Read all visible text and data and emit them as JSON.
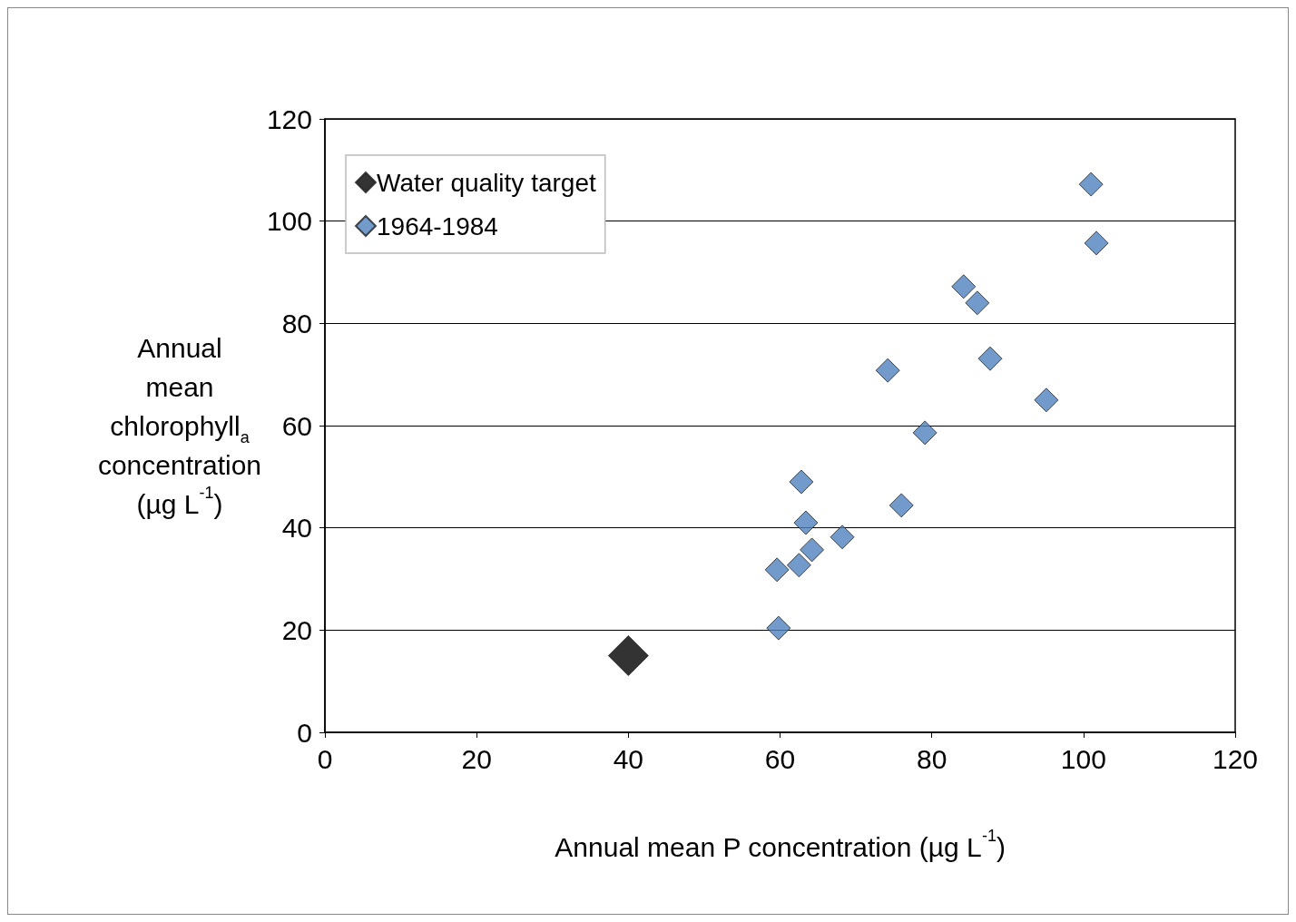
{
  "chart_data": {
    "type": "scatter",
    "xlabel": "Annual mean P concentration (µg L$^{-1}$)",
    "ylabel": "Annual mean chlorophyll$_{a}$ concentration (µg L$^{-1}$)",
    "xlim": [
      0,
      120
    ],
    "xticks": [
      0,
      20,
      40,
      60,
      80,
      100,
      120
    ],
    "ylim": [
      0,
      120
    ],
    "yticks": [
      0,
      20,
      40,
      60,
      80,
      100,
      120
    ],
    "grid": "y",
    "legend": "top left",
    "marker": "diamond",
    "series": [
      {
        "name": "Water quality target",
        "color": "#000000",
        "x": [
          40
        ],
        "values": [
          15
        ]
      },
      {
        "name": "1964-1984",
        "color": "#4f81bd",
        "x": [
          59.6,
          59.8,
          62.5,
          62.8,
          63.4,
          64.2,
          68.2,
          74.2,
          76.0,
          79.1,
          84.2,
          86.0,
          87.7,
          95.1,
          101.0,
          101.7
        ],
        "values": [
          31.8,
          20.4,
          32.7,
          49.0,
          41.0,
          35.7,
          38.2,
          70.8,
          44.4,
          58.6,
          87.2,
          84.0,
          73.1,
          65.0,
          107.2,
          95.7
        ]
      }
    ]
  }
}
